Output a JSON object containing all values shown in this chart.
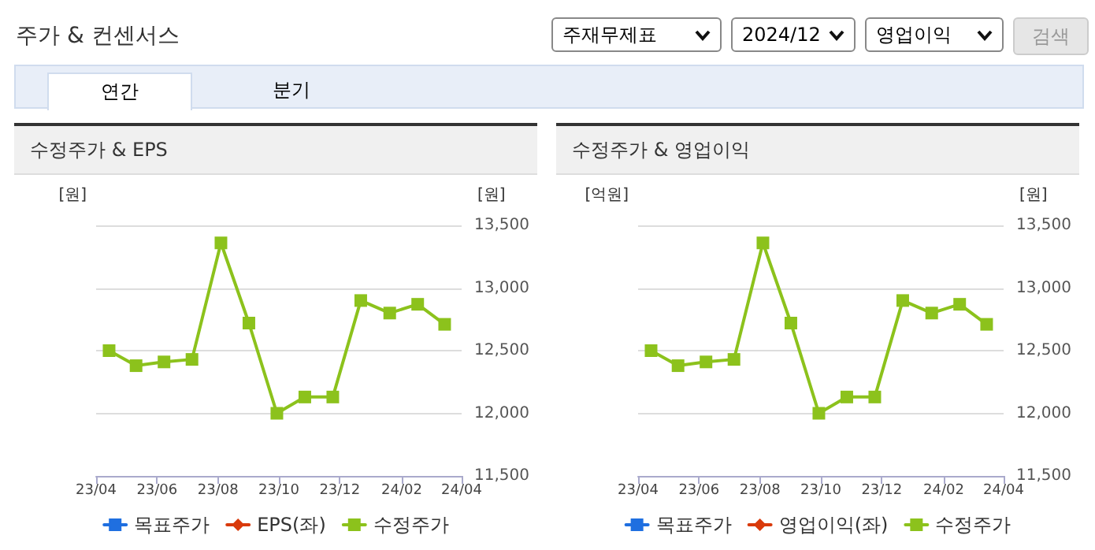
{
  "chart_data": [
    {
      "type": "other",
      "title": "주가 & 컨센서스",
      "annotations": [
        "주재무제표",
        "2024/12",
        "영업이익",
        "검색",
        "연간",
        "분기"
      ]
    },
    {
      "type": "line",
      "title": "수정주가 & EPS",
      "ylabel": "[원]",
      "y2label": "[원]",
      "x": [
        "2023-04-14",
        "2023-05-11",
        "2023-06-08",
        "2023-07-06",
        "2023-08-04",
        "2023-09-01",
        "2023-09-29",
        "2023-10-27",
        "2023-11-24",
        "2023-12-22",
        "2024-01-20",
        "2024-02-17",
        "2024-03-15"
      ],
      "xlim": [
        "2023-04",
        "2024-04"
      ],
      "xticks": [
        {
          "value": "2023-04",
          "label": "23/04"
        },
        {
          "value": "2023-06",
          "label": "23/06"
        },
        {
          "value": "2023-08",
          "label": "23/08"
        },
        {
          "value": "2023-10",
          "label": "23/10"
        },
        {
          "value": "2023-12",
          "label": "23/12"
        },
        {
          "value": "2024-02",
          "label": "24/02"
        },
        {
          "value": "2024-04",
          "label": "24/04"
        }
      ],
      "y2lim": [
        11500,
        13500
      ],
      "y2ticks": [
        {
          "value": 11500,
          "label": "11,500"
        },
        {
          "value": 12000,
          "label": "12,000"
        },
        {
          "value": 12500,
          "label": "12,500"
        },
        {
          "value": 13000,
          "label": "13,000"
        },
        {
          "value": 13500,
          "label": "13,500"
        }
      ],
      "grid": "y",
      "legend": "bottom",
      "marker": "square",
      "series": [
        {
          "name": "목표주가",
          "color": "#1f6fe0",
          "values": [
            null,
            null,
            null,
            null,
            null,
            null,
            null,
            null,
            null,
            null,
            null,
            null,
            null
          ]
        },
        {
          "name": "EPS(좌)",
          "color": "#d93a0b",
          "marker": "diamond",
          "values": [
            null,
            null,
            null,
            null,
            null,
            null,
            null,
            null,
            null,
            null,
            null,
            null,
            null
          ]
        },
        {
          "name": "수정주가",
          "color": "#8cc21c",
          "axis": "y2",
          "values": [
            12500,
            12380,
            12410,
            12430,
            13360,
            12720,
            12000,
            12130,
            12130,
            12900,
            12800,
            12870,
            12710
          ]
        }
      ]
    },
    {
      "type": "line",
      "title": "수정주가 & 영업이익",
      "ylabel": "[억원]",
      "y2label": "[원]",
      "x": [
        "2023-04-14",
        "2023-05-11",
        "2023-06-08",
        "2023-07-06",
        "2023-08-04",
        "2023-09-01",
        "2023-09-29",
        "2023-10-27",
        "2023-11-24",
        "2023-12-22",
        "2024-01-20",
        "2024-02-17",
        "2024-03-15"
      ],
      "xlim": [
        "2023-04",
        "2024-04"
      ],
      "xticks": [
        {
          "value": "2023-04",
          "label": "23/04"
        },
        {
          "value": "2023-06",
          "label": "23/06"
        },
        {
          "value": "2023-08",
          "label": "23/08"
        },
        {
          "value": "2023-10",
          "label": "23/10"
        },
        {
          "value": "2023-12",
          "label": "23/12"
        },
        {
          "value": "2024-02",
          "label": "24/02"
        },
        {
          "value": "2024-04",
          "label": "24/04"
        }
      ],
      "y2lim": [
        11500,
        13500
      ],
      "y2ticks": [
        {
          "value": 11500,
          "label": "11,500"
        },
        {
          "value": 12000,
          "label": "12,000"
        },
        {
          "value": 12500,
          "label": "12,500"
        },
        {
          "value": 13000,
          "label": "13,000"
        },
        {
          "value": 13500,
          "label": "13,500"
        }
      ],
      "grid": "y",
      "legend": "bottom",
      "marker": "square",
      "series": [
        {
          "name": "목표주가",
          "color": "#1f6fe0",
          "values": [
            null,
            null,
            null,
            null,
            null,
            null,
            null,
            null,
            null,
            null,
            null,
            null,
            null
          ]
        },
        {
          "name": "영업이익(좌)",
          "color": "#d93a0b",
          "marker": "diamond",
          "values": [
            null,
            null,
            null,
            null,
            null,
            null,
            null,
            null,
            null,
            null,
            null,
            null,
            null
          ]
        },
        {
          "name": "수정주가",
          "color": "#8cc21c",
          "axis": "y2",
          "values": [
            12500,
            12380,
            12410,
            12430,
            13360,
            12720,
            12000,
            12130,
            12130,
            12900,
            12800,
            12870,
            12710
          ]
        }
      ]
    }
  ]
}
